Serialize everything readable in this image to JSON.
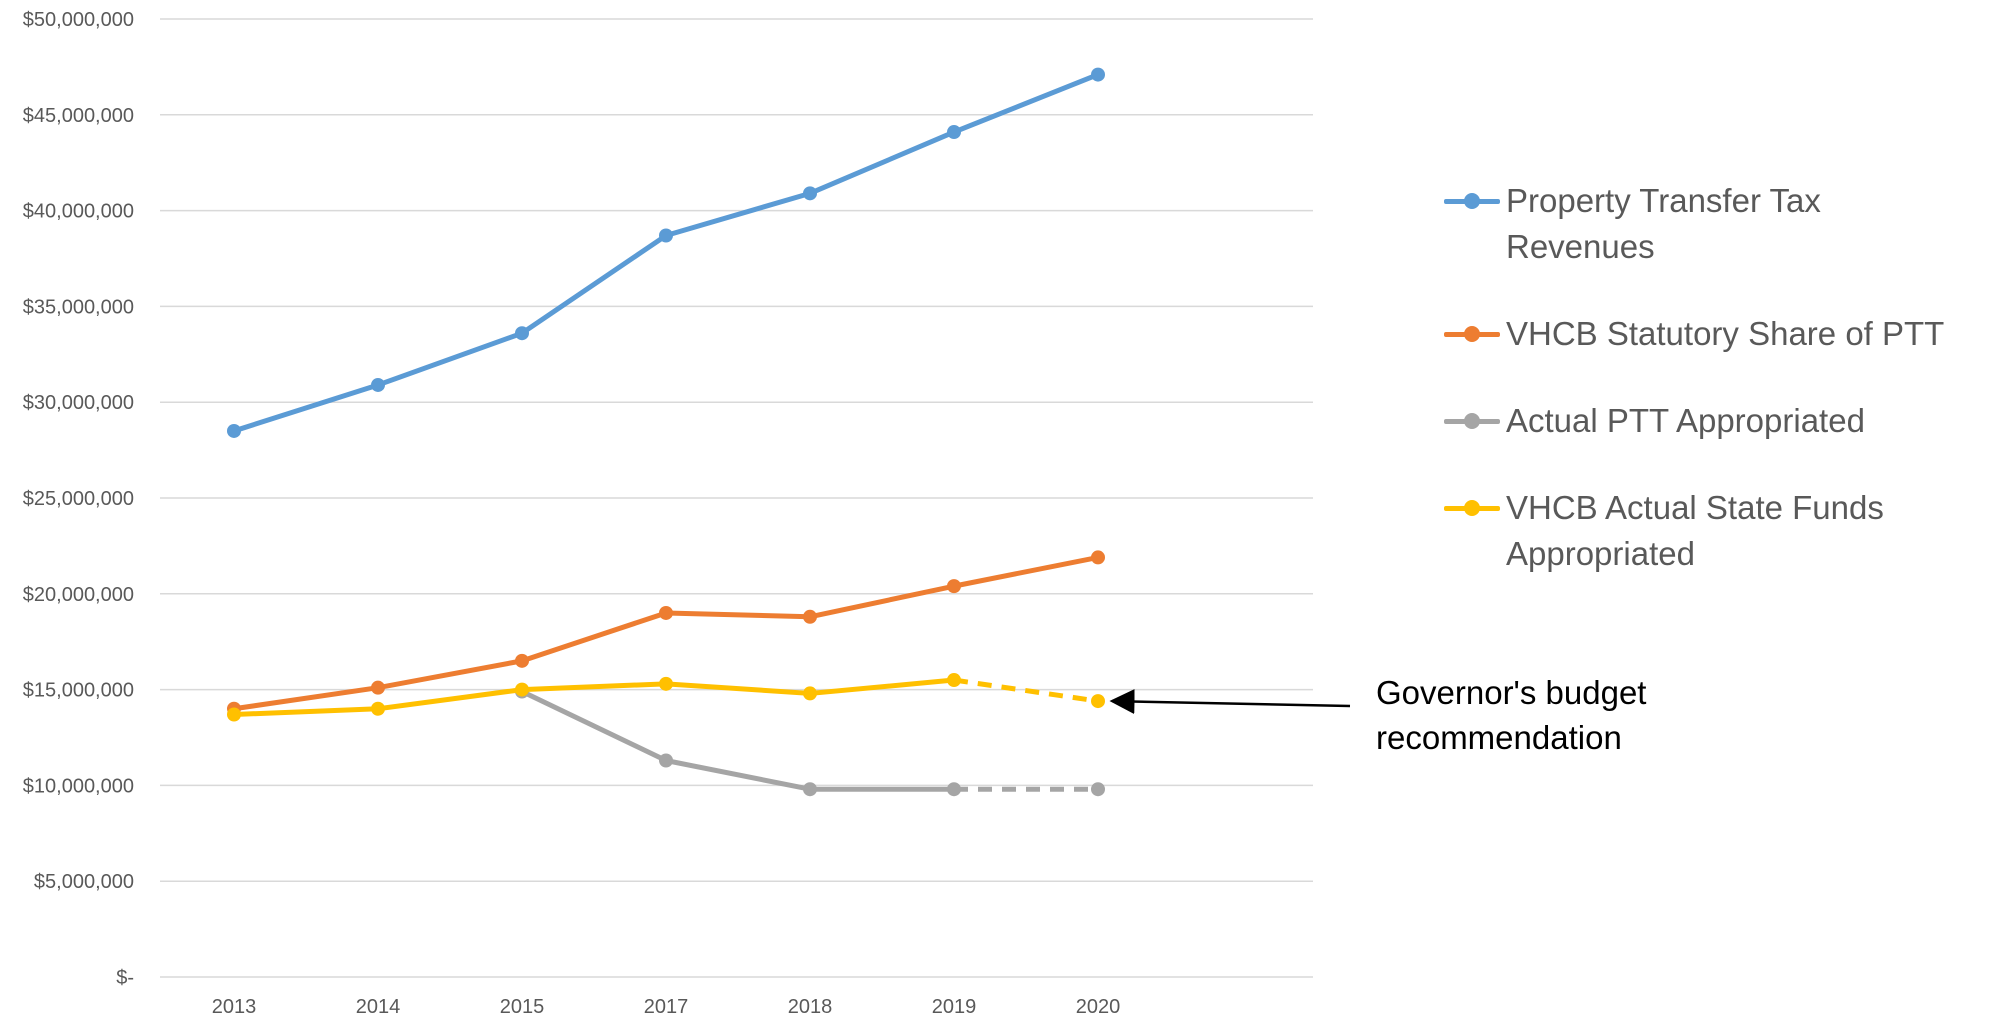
{
  "chart_data": {
    "type": "line",
    "categories": [
      "2013",
      "2014",
      "2015",
      "2017",
      "2018",
      "2019",
      "2020"
    ],
    "y_tick_labels": [
      "$-",
      "$5,000,000",
      "$10,000,000",
      "$15,000,000",
      "$20,000,000",
      "$25,000,000",
      "$30,000,000",
      "$35,000,000",
      "$40,000,000",
      "$45,000,000",
      "$50,000,000"
    ],
    "ylim": [
      0,
      50000000
    ],
    "y_step": 5000000,
    "grid": true,
    "legend_position": "right",
    "series": [
      {
        "name": "Property Transfer Tax Revenues",
        "color": "#5B9BD5",
        "values": [
          28500000,
          30900000,
          33600000,
          38700000,
          40900000,
          44100000,
          47100000
        ],
        "dashed_from_index": null
      },
      {
        "name": "VHCB Statutory Share of PTT",
        "color": "#ED7D31",
        "values": [
          14000000,
          15100000,
          16500000,
          19000000,
          18800000,
          20400000,
          21900000
        ],
        "dashed_from_index": null
      },
      {
        "name": "Actual PTT Appropriated",
        "color": "#A5A5A5",
        "values": [
          null,
          null,
          14900000,
          11300000,
          9800000,
          9800000,
          9800000
        ],
        "dashed_from_index": 5
      },
      {
        "name": "VHCB Actual State Funds Appropriated",
        "color": "#FFC000",
        "values": [
          13700000,
          14000000,
          15000000,
          15300000,
          14800000,
          15500000,
          14400000
        ],
        "dashed_from_index": 5
      }
    ],
    "annotations": [
      {
        "text": "Governor's budget recommendation",
        "points_to_series": "VHCB Actual State Funds Appropriated",
        "points_to_category": "2020"
      }
    ]
  }
}
